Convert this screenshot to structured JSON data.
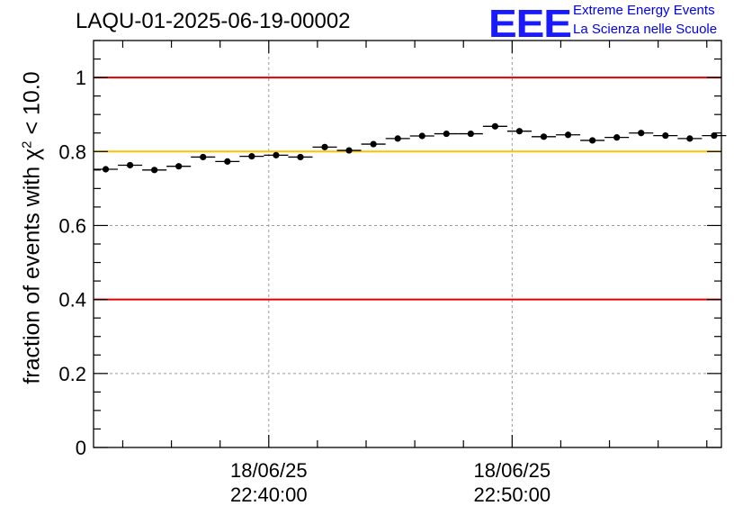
{
  "header": {
    "run_id": "LAQU-01-2025-06-19-00002",
    "logo_text": "EEE",
    "logo_line1": "Extreme Energy Events",
    "logo_line2": "La Scienza nelle Scuole"
  },
  "colors": {
    "threshold_red": "#e00000",
    "threshold_yellow": "#ffc000",
    "marker": "#000000",
    "grid": "#9a9a9a"
  },
  "chart_data": {
    "type": "scatter",
    "title": "LAQU-01-2025-06-19-00002",
    "xlabel": "",
    "ylabel_prefix": "fraction of events with ",
    "ylabel_symbol": "χ",
    "ylabel_power": "2",
    "ylabel_suffix": " < 10.0",
    "ylim": [
      0,
      1.1
    ],
    "yticks": [
      "0",
      "0.2",
      "0.4",
      "0.6",
      "0.8",
      "1"
    ],
    "xlim_minutes": [
      -7.2,
      18.6
    ],
    "xticks": [
      {
        "minute": 0,
        "date": "18/06/25",
        "time": "22:40:00"
      },
      {
        "minute": 10,
        "date": "18/06/25",
        "time": "22:50:00"
      }
    ],
    "bin_width_minutes": 1,
    "x_minutes": [
      -6.7,
      -5.7,
      -4.7,
      -3.7,
      -2.7,
      -1.7,
      -0.7,
      0.3,
      1.3,
      2.3,
      3.3,
      4.3,
      5.3,
      6.3,
      7.3,
      8.3,
      9.3,
      10.3,
      11.3,
      12.3,
      13.3,
      14.3,
      15.3,
      16.3,
      17.3,
      18.3
    ],
    "values": [
      0.752,
      0.763,
      0.75,
      0.76,
      0.785,
      0.773,
      0.787,
      0.79,
      0.785,
      0.812,
      0.803,
      0.82,
      0.835,
      0.842,
      0.848,
      0.848,
      0.868,
      0.855,
      0.84,
      0.845,
      0.83,
      0.838,
      0.85,
      0.843,
      0.835,
      0.843
    ],
    "reference_lines": [
      {
        "y": 1.0,
        "color": "red"
      },
      {
        "y": 0.8,
        "color": "yellow"
      },
      {
        "y": 0.4,
        "color": "red"
      }
    ],
    "grid": true
  }
}
